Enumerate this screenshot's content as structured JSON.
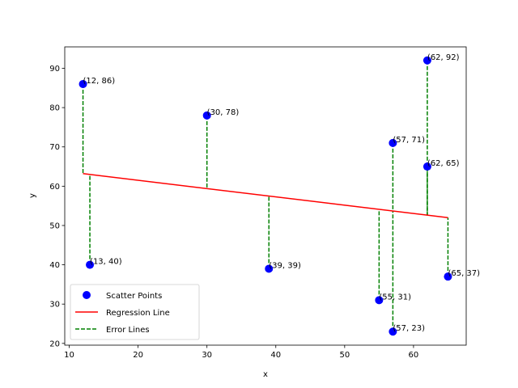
{
  "chart_data": {
    "type": "scatter",
    "title": "",
    "xlabel": "x",
    "ylabel": "y",
    "xlim": [
      9.35,
      67.65
    ],
    "ylim": [
      19.55,
      95.45
    ],
    "xticks": [
      10,
      20,
      30,
      40,
      50,
      60
    ],
    "yticks": [
      20,
      30,
      40,
      50,
      60,
      70,
      80,
      90
    ],
    "grid": false,
    "legend_position": "lower-left",
    "points": [
      {
        "x": 12,
        "y": 86,
        "label": "(12, 86)"
      },
      {
        "x": 13,
        "y": 40,
        "label": "(13, 40)"
      },
      {
        "x": 30,
        "y": 78,
        "label": "(30, 78)"
      },
      {
        "x": 39,
        "y": 39,
        "label": "(39, 39)"
      },
      {
        "x": 55,
        "y": 31,
        "label": "(55, 31)"
      },
      {
        "x": 57,
        "y": 71,
        "label": "(57, 71)"
      },
      {
        "x": 57,
        "y": 23,
        "label": "(57, 23)"
      },
      {
        "x": 62,
        "y": 92,
        "label": "(62, 92)"
      },
      {
        "x": 62,
        "y": 65,
        "label": "(62, 65)"
      },
      {
        "x": 65,
        "y": 37,
        "label": "(65, 37)"
      }
    ],
    "regression": {
      "x_start": 12,
      "y_start": 63.2,
      "x_end": 65,
      "y_end": 52.0
    },
    "series": [
      {
        "name": "Scatter Points",
        "color": "#0000ff",
        "marker": "circle"
      },
      {
        "name": "Regression Line",
        "color": "#ff0000",
        "style": "solid"
      },
      {
        "name": "Error Lines",
        "color": "#008000",
        "style": "dashed"
      }
    ]
  }
}
